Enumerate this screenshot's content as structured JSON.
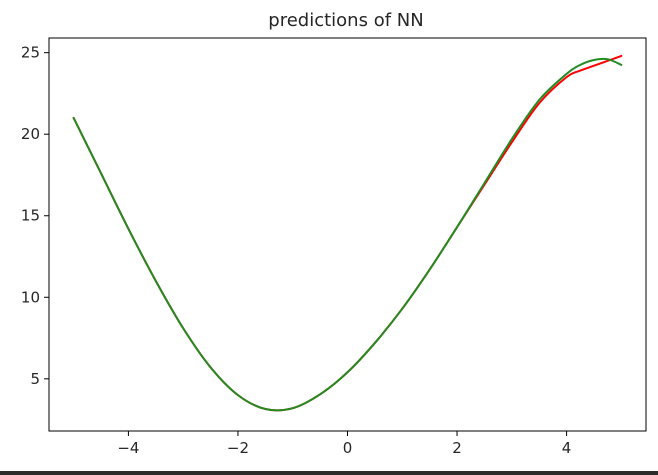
{
  "chart_data": {
    "type": "line",
    "title": "predictions of NN",
    "xlabel": "",
    "ylabel": "",
    "xlim": [
      -5.45,
      5.45
    ],
    "ylim": [
      1.8,
      25.9
    ],
    "grid": false,
    "legend": "none",
    "x_ticks": [
      -4,
      -2,
      0,
      2,
      4
    ],
    "x_tick_labels": [
      "−4",
      "−2",
      "0",
      "2",
      "4"
    ],
    "y_ticks": [
      5,
      10,
      15,
      20,
      25
    ],
    "y_tick_labels": [
      "5",
      "10",
      "15",
      "20",
      "25"
    ],
    "series": [
      {
        "color": "#ff0000",
        "x": [
          -5.0,
          -4.5,
          -4.0,
          -3.5,
          -3.0,
          -2.5,
          -2.0,
          -1.5,
          -1.0,
          -0.5,
          0.0,
          0.5,
          1.0,
          1.5,
          2.0,
          2.5,
          3.0,
          3.5,
          4.0,
          4.25,
          4.5,
          4.75,
          5.0
        ],
        "values": [
          21.0,
          17.6,
          14.2,
          11.0,
          8.1,
          5.7,
          4.0,
          3.15,
          3.2,
          4.05,
          5.4,
          7.2,
          9.3,
          11.7,
          14.3,
          16.9,
          19.5,
          21.9,
          23.5,
          23.9,
          24.2,
          24.5,
          24.8
        ]
      },
      {
        "color": "#228b22",
        "x": [
          -5.0,
          -4.5,
          -4.0,
          -3.5,
          -3.0,
          -2.5,
          -2.0,
          -1.5,
          -1.0,
          -0.5,
          0.0,
          0.5,
          1.0,
          1.5,
          2.0,
          2.5,
          3.0,
          3.5,
          4.0,
          4.25,
          4.5,
          4.75,
          5.0
        ],
        "values": [
          21.0,
          17.6,
          14.2,
          11.0,
          8.1,
          5.7,
          4.0,
          3.15,
          3.2,
          4.05,
          5.4,
          7.2,
          9.3,
          11.7,
          14.3,
          17.0,
          19.7,
          22.1,
          23.7,
          24.25,
          24.55,
          24.6,
          24.25
        ]
      }
    ]
  }
}
